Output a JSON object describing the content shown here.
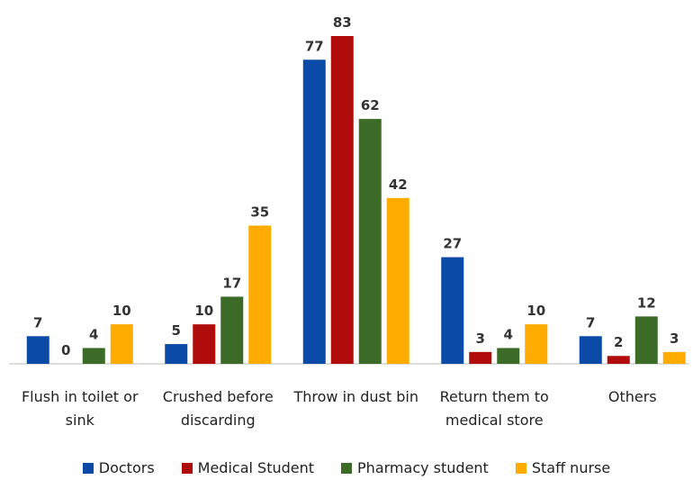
{
  "chart_data": {
    "type": "bar",
    "categories": [
      "Flush in toilet or sink",
      "Crushed before discarding",
      "Throw in dust bin",
      "Return them to medical store",
      "Others"
    ],
    "series": [
      {
        "name": "Doctors",
        "color": "#0b4aa6",
        "values": [
          7,
          5,
          77,
          27,
          7
        ]
      },
      {
        "name": "Medical Student",
        "color": "#b00c0c",
        "values": [
          0,
          10,
          83,
          3,
          2
        ]
      },
      {
        "name": "Pharmacy student",
        "color": "#3b6b26",
        "values": [
          4,
          17,
          62,
          4,
          12
        ]
      },
      {
        "name": "Staff nurse",
        "color": "#ffab00",
        "values": [
          10,
          35,
          42,
          10,
          3
        ]
      }
    ],
    "legend": "bottom"
  }
}
